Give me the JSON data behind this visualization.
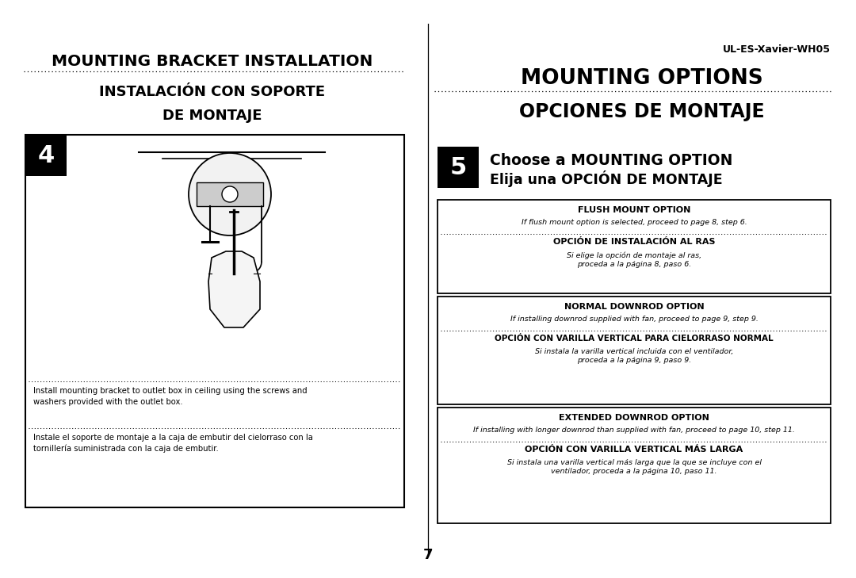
{
  "page_bg": "#ffffff",
  "model_number": "UL-ES-Xavier-WH05",
  "left_title1": "MOUNTING BRACKET INSTALLATION",
  "left_title2": "INSTALACIÓN CON SOPORTE",
  "left_title3": "DE MONTAJE",
  "step4_num": "4",
  "step4_text_en": "Install mounting bracket to outlet box in ceiling using the screws and\nwashers provided with the outlet box.",
  "step4_text_es": "Instale el soporte de montaje a la caja de embutir del cielorraso con la\ntornillería suministrada con la caja de embutir.",
  "right_title1": "MOUNTING OPTIONS",
  "right_title2": "OPCIONES DE MONTAJE",
  "step5_num": "5",
  "step5_text1": "Choose a MOUNTING OPTION",
  "step5_text2": "Elija una OPCIÓN DE MONTAJE",
  "box1_title": "FLUSH MOUNT OPTION",
  "box1_en": "If flush mount option is selected, proceed to page 8, step 6.",
  "box1_es_title": "OPCIÓN DE INSTALACIÓN AL RAS",
  "box1_es": "Si elige la opción de montaje al ras,\nproceda a la página 8, paso 6.",
  "box2_title": "NORMAL DOWNROD OPTION",
  "box2_en": "If installing downrod supplied with fan, proceed to page 9, step 9.",
  "box2_es_title": "OPCIÓN CON VARILLA VERTICAL PARA CIELORRASO NORMAL",
  "box2_es": "Si instala la varilla vertical incluida con el ventilador,\nproceda a la página 9, paso 9.",
  "box3_title": "EXTENDED DOWNROD OPTION",
  "box3_en": "If installing with longer downrod than supplied with fan, proceed to page 10, step 11.",
  "box3_es_title": "OPCIÓN CON VARILLA VERTICAL MÁS LARGA",
  "box3_es": "Si instala una varilla vertical más larga que la que se incluye con el\nventilador, proceda a la página 10, paso 11.",
  "page_num": "7"
}
